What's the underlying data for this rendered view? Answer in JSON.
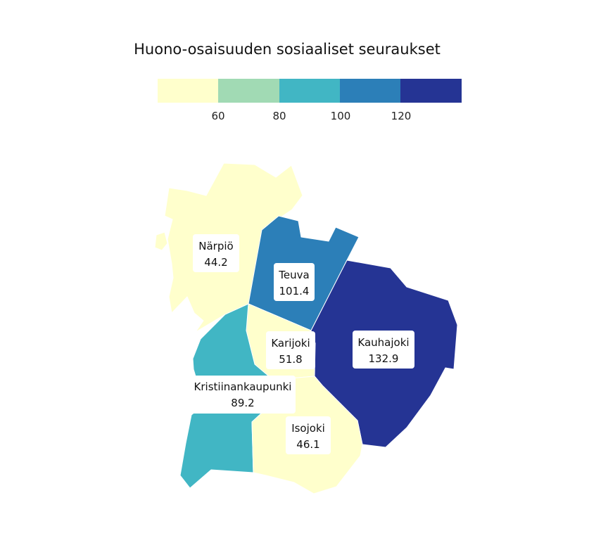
{
  "title": "Huono-osaisuuden sosiaaliset seuraukset",
  "legend": {
    "ticks": [
      "60",
      "80",
      "100",
      "120"
    ],
    "colors": [
      "#ffffcc",
      "#a1dab4",
      "#41b6c4",
      "#2c7fb8",
      "#253494"
    ],
    "breaks": [
      60,
      80,
      100,
      120
    ]
  },
  "regions": [
    {
      "name": "Närpiö",
      "value": "44.2",
      "color": "#ffffcc"
    },
    {
      "name": "Teuva",
      "value": "101.4",
      "color": "#2c7fb8"
    },
    {
      "name": "Karijoki",
      "value": "51.8",
      "color": "#ffffcc"
    },
    {
      "name": "Kauhajoki",
      "value": "132.9",
      "color": "#253494"
    },
    {
      "name": "Kristiinankaupunki",
      "value": "89.2",
      "color": "#41b6c4"
    },
    {
      "name": "Isojoki",
      "value": "46.1",
      "color": "#ffffcc"
    }
  ]
}
